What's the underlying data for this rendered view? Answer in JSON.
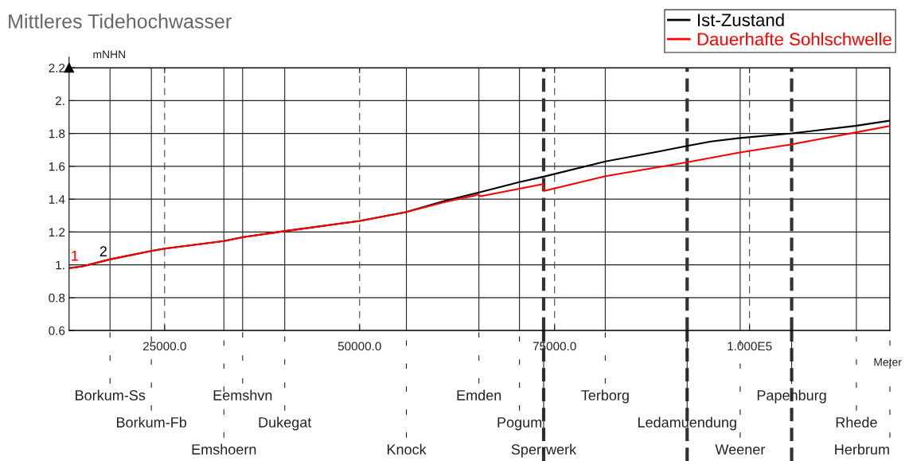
{
  "chart_data": {
    "type": "line",
    "title": "Mittleres Tidehochwasser",
    "ylabel": "mNHN",
    "xlabel": "Meter",
    "xlim": [
      12750,
      118000
    ],
    "ylim": [
      0.6,
      2.2
    ],
    "xticks": [
      {
        "value": 25000,
        "label": "25000.0"
      },
      {
        "value": 50000,
        "label": "50000.0"
      },
      {
        "value": 75000,
        "label": "75000.0"
      },
      {
        "value": 100000,
        "label": "1.000E5"
      }
    ],
    "yticks": [
      0.6,
      0.8,
      {
        "value": 1,
        "label": "1."
      },
      1.2,
      1.4,
      1.6,
      1.8,
      {
        "value": 2,
        "label": "2."
      },
      2.2
    ],
    "grid": true,
    "legend": "top right",
    "marker": "none",
    "line_style": "solid",
    "series": [
      {
        "name": "Ist-Zustand",
        "color": "#000000",
        "x": [
          12750,
          14460,
          18050,
          23265,
          25000,
          32600,
          35100,
          40500,
          50000,
          55900,
          61020,
          65300,
          70470,
          73600,
          81530,
          88240,
          92010,
          95030,
          98740,
          105430,
          113550,
          118000
        ],
        "values": [
          0.98,
          0.991,
          1.034,
          1.084,
          1.099,
          1.145,
          1.169,
          1.206,
          1.267,
          1.321,
          1.391,
          1.441,
          1.504,
          1.537,
          1.63,
          1.689,
          1.724,
          1.751,
          1.772,
          1.801,
          1.846,
          1.878
        ]
      },
      {
        "name": "Dauerhafte Sohlschwelle",
        "color": "#ff0000",
        "x": [
          12750,
          14460,
          18050,
          23265,
          25000,
          32600,
          35100,
          40500,
          50000,
          55900,
          61020,
          64800,
          65100,
          65500,
          73500,
          73650,
          81530,
          92010,
          98740,
          105430,
          113550,
          118000
        ],
        "values": [
          0.98,
          0.991,
          1.034,
          1.084,
          1.099,
          1.145,
          1.169,
          1.206,
          1.267,
          1.321,
          1.384,
          1.423,
          1.429,
          1.418,
          1.492,
          1.45,
          1.54,
          1.625,
          1.684,
          1.734,
          1.806,
          1.846
        ]
      }
    ],
    "annotations": [
      "1",
      "2"
    ],
    "ref_lines": [
      {
        "axis": "x",
        "value": 18000,
        "label": "Borkum-Ss",
        "line_style": "solid"
      },
      {
        "axis": "x",
        "value": 23300,
        "label": "Borkum-Fb",
        "line_style": "solid"
      },
      {
        "axis": "x",
        "value": 32600,
        "label": "Emshoern",
        "line_style": "solid"
      },
      {
        "axis": "x",
        "value": 35000,
        "label": "Eemshvn",
        "line_style": "solid"
      },
      {
        "axis": "x",
        "value": 40400,
        "label": "Dukegat",
        "line_style": "solid"
      },
      {
        "axis": "x",
        "value": 56000,
        "label": "Knock",
        "line_style": "solid"
      },
      {
        "axis": "x",
        "value": 65300,
        "label": "Emden",
        "line_style": "solid"
      },
      {
        "axis": "x",
        "value": 70500,
        "label": "Pogum",
        "line_style": "solid"
      },
      {
        "axis": "x",
        "value": 73600,
        "label": "Sperrwerk",
        "line_style": "dashed"
      },
      {
        "axis": "x",
        "value": 81500,
        "label": "Terborg",
        "line_style": "solid"
      },
      {
        "axis": "x",
        "value": 92000,
        "label": "Ledamuendung",
        "line_style": "dashed"
      },
      {
        "axis": "x",
        "value": 98800,
        "label": "Weener",
        "line_style": "solid"
      },
      {
        "axis": "x",
        "value": 105400,
        "label": "Papenburg",
        "line_style": "dashed"
      },
      {
        "axis": "x",
        "value": 113700,
        "label": "Rhede",
        "line_style": "solid"
      },
      {
        "axis": "x",
        "value": 118000,
        "label": "Herbrum",
        "line_style": "solid"
      }
    ]
  }
}
